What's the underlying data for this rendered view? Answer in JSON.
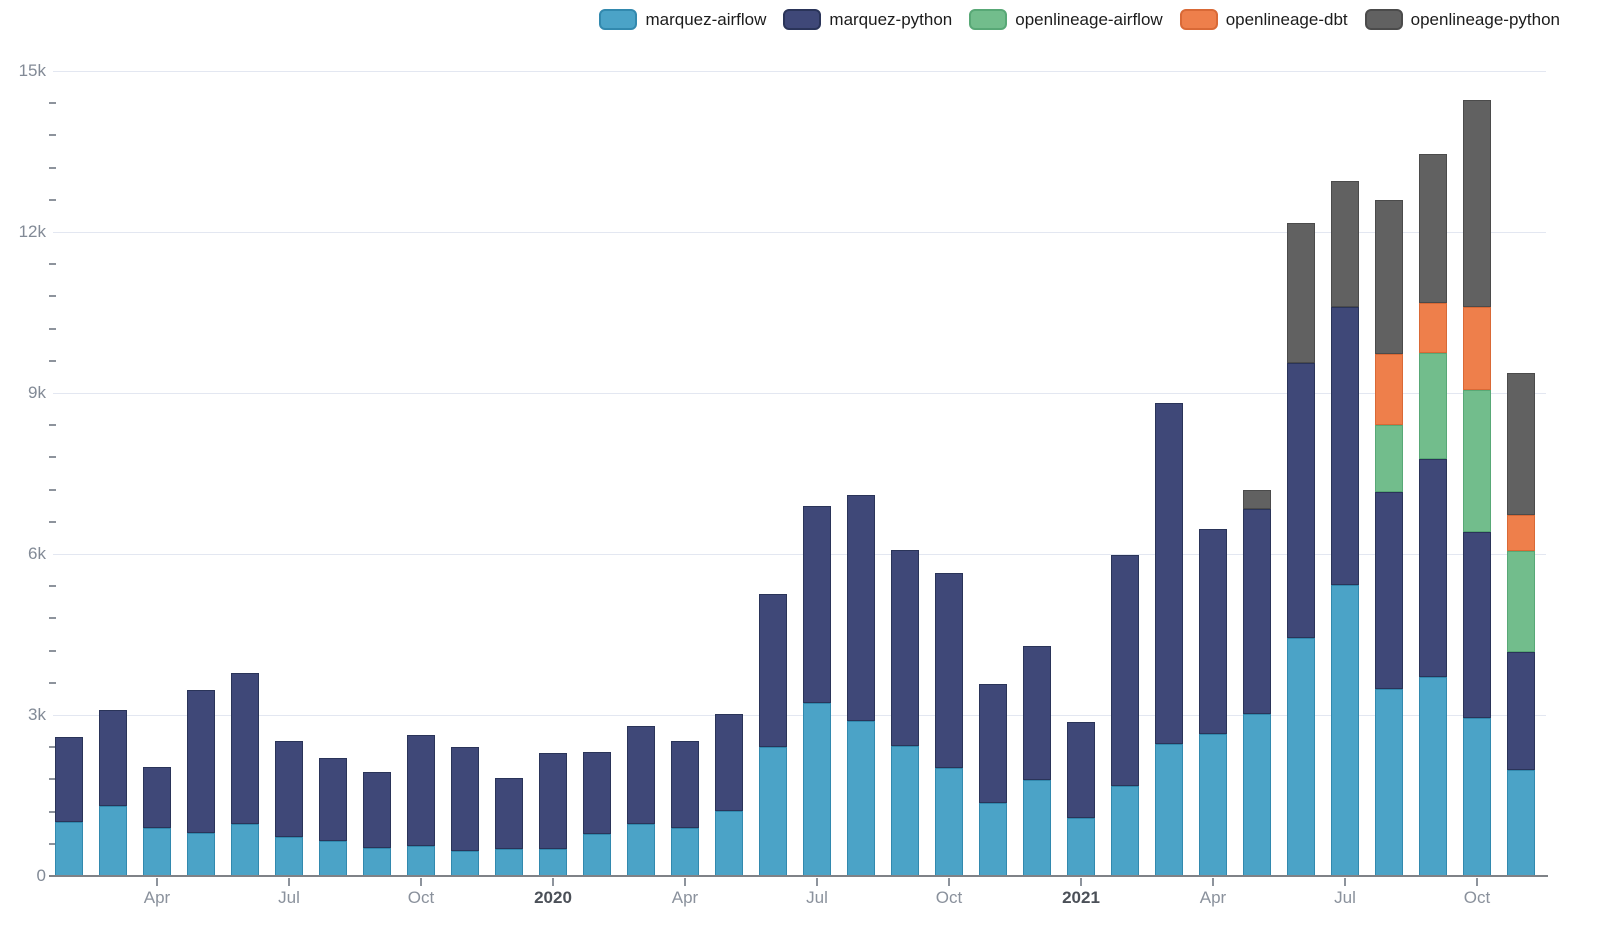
{
  "legend": {
    "items": [
      {
        "label": "marquez-airflow",
        "color": "#4ba3c7",
        "border": "#3289ae"
      },
      {
        "label": "marquez-python",
        "color": "#3f4878",
        "border": "#2a3459"
      },
      {
        "label": "openlineage-airflow",
        "color": "#72bd8c",
        "border": "#58a876"
      },
      {
        "label": "openlineage-dbt",
        "color": "#ee7f4b",
        "border": "#d96936"
      },
      {
        "label": "openlineage-python",
        "color": "#616161",
        "border": "#4b4b4b"
      }
    ]
  },
  "chart_data": {
    "type": "bar",
    "stacked": true,
    "x": [
      "2019-02",
      "2019-03",
      "2019-04",
      "2019-05",
      "2019-06",
      "2019-07",
      "2019-08",
      "2019-09",
      "2019-10",
      "2019-11",
      "2019-12",
      "2020-01",
      "2020-02",
      "2020-03",
      "2020-04",
      "2020-05",
      "2020-06",
      "2020-07",
      "2020-08",
      "2020-09",
      "2020-10",
      "2020-11",
      "2020-12",
      "2021-01",
      "2021-02",
      "2021-03",
      "2021-04",
      "2021-05",
      "2021-06",
      "2021-07",
      "2021-08",
      "2021-09",
      "2021-10",
      "2021-11"
    ],
    "series": [
      {
        "name": "marquez-airflow",
        "color": "#4ba3c7",
        "border": "#3289ae",
        "values": [
          1010,
          1300,
          890,
          800,
          970,
          720,
          650,
          520,
          560,
          470,
          500,
          510,
          780,
          970,
          900,
          1210,
          2410,
          3220,
          2890,
          2430,
          2020,
          1360,
          1780,
          1090,
          1670,
          2460,
          2640,
          3010,
          4440,
          5430,
          3480,
          3710,
          2950,
          1980
        ]
      },
      {
        "name": "marquez-python",
        "color": "#3f4878",
        "border": "#2a3459",
        "values": [
          1590,
          1790,
          1130,
          2670,
          2820,
          1780,
          1550,
          1410,
          2070,
          1930,
          1330,
          1780,
          1520,
          1820,
          1630,
          1810,
          2850,
          3680,
          4210,
          3650,
          3630,
          2220,
          2490,
          1780,
          4310,
          6360,
          3820,
          3820,
          5130,
          5180,
          3670,
          4060,
          3460,
          2200
        ]
      },
      {
        "name": "openlineage-airflow",
        "color": "#72bd8c",
        "border": "#58a876",
        "values": [
          0,
          0,
          0,
          0,
          0,
          0,
          0,
          0,
          0,
          0,
          0,
          0,
          0,
          0,
          0,
          0,
          0,
          0,
          0,
          0,
          0,
          0,
          0,
          0,
          0,
          0,
          0,
          0,
          0,
          0,
          1250,
          1980,
          2640,
          1880
        ]
      },
      {
        "name": "openlineage-dbt",
        "color": "#ee7f4b",
        "border": "#d96936",
        "values": [
          0,
          0,
          0,
          0,
          0,
          0,
          0,
          0,
          0,
          0,
          0,
          0,
          0,
          0,
          0,
          0,
          0,
          0,
          0,
          0,
          0,
          0,
          0,
          0,
          0,
          0,
          0,
          0,
          0,
          0,
          1330,
          940,
          1540,
          680
        ]
      },
      {
        "name": "openlineage-python",
        "color": "#616161",
        "border": "#4b4b4b",
        "values": [
          0,
          0,
          0,
          0,
          0,
          0,
          0,
          0,
          0,
          0,
          0,
          0,
          0,
          0,
          0,
          0,
          0,
          0,
          0,
          0,
          0,
          0,
          0,
          0,
          0,
          0,
          0,
          350,
          2610,
          2350,
          2870,
          2770,
          3850,
          2640
        ]
      }
    ],
    "ylim": [
      0,
      15000
    ],
    "y_ticks": [
      {
        "value": 0,
        "label": "0"
      },
      {
        "value": 3000,
        "label": "3k"
      },
      {
        "value": 6000,
        "label": "6k"
      },
      {
        "value": 9000,
        "label": "9k"
      },
      {
        "value": 12000,
        "label": "12k"
      },
      {
        "value": 15000,
        "label": "15k"
      }
    ],
    "y_minor_step": 600,
    "x_ticks": [
      {
        "index": 2,
        "label": "Apr",
        "year": false
      },
      {
        "index": 5,
        "label": "Jul",
        "year": false
      },
      {
        "index": 8,
        "label": "Oct",
        "year": false
      },
      {
        "index": 11,
        "label": "2020",
        "year": true
      },
      {
        "index": 14,
        "label": "Apr",
        "year": false
      },
      {
        "index": 17,
        "label": "Jul",
        "year": false
      },
      {
        "index": 20,
        "label": "Oct",
        "year": false
      },
      {
        "index": 23,
        "label": "2021",
        "year": true
      },
      {
        "index": 26,
        "label": "Apr",
        "year": false
      },
      {
        "index": 29,
        "label": "Jul",
        "year": false
      },
      {
        "index": 32,
        "label": "Oct",
        "year": false
      }
    ],
    "grid": true,
    "legend_position": "top-right"
  }
}
